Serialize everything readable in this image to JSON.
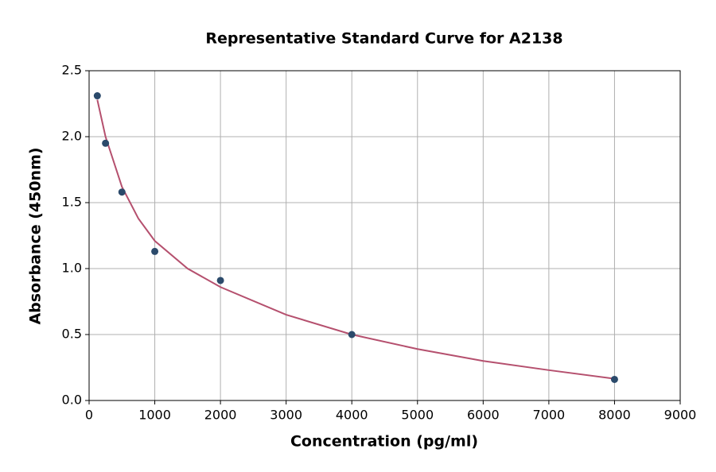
{
  "chart_data": {
    "type": "scatter",
    "title": "Representative Standard Curve for A2138",
    "x_label": "Concentration (pg/ml)",
    "y_label": "Absorbance (450nm)",
    "x": [
      125,
      250,
      500,
      1000,
      2000,
      4000,
      8000
    ],
    "series": [
      {
        "color": "#2b4a6b",
        "values": [
          2.31,
          1.95,
          1.58,
          1.13,
          0.91,
          0.5,
          0.16
        ]
      }
    ],
    "curve": {
      "color": "#b5506e",
      "x": [
        125,
        250,
        500,
        750,
        1000,
        1500,
        2000,
        3000,
        4000,
        5000,
        6000,
        7000,
        8000
      ],
      "values": [
        2.28,
        2.0,
        1.62,
        1.38,
        1.21,
        1.0,
        0.86,
        0.65,
        0.5,
        0.39,
        0.3,
        0.23,
        0.165
      ]
    },
    "xlim": [
      0,
      9000
    ],
    "xticks": [
      0,
      1000,
      2000,
      3000,
      4000,
      5000,
      6000,
      7000,
      8000,
      9000
    ],
    "ylim": [
      0,
      2.5
    ],
    "yticks": [
      {
        "value": 0,
        "label": "0.0"
      },
      0.5,
      {
        "value": 1,
        "label": "1.0"
      },
      1.5,
      {
        "value": 2,
        "label": "2.0"
      },
      2.5
    ],
    "grid": true
  }
}
